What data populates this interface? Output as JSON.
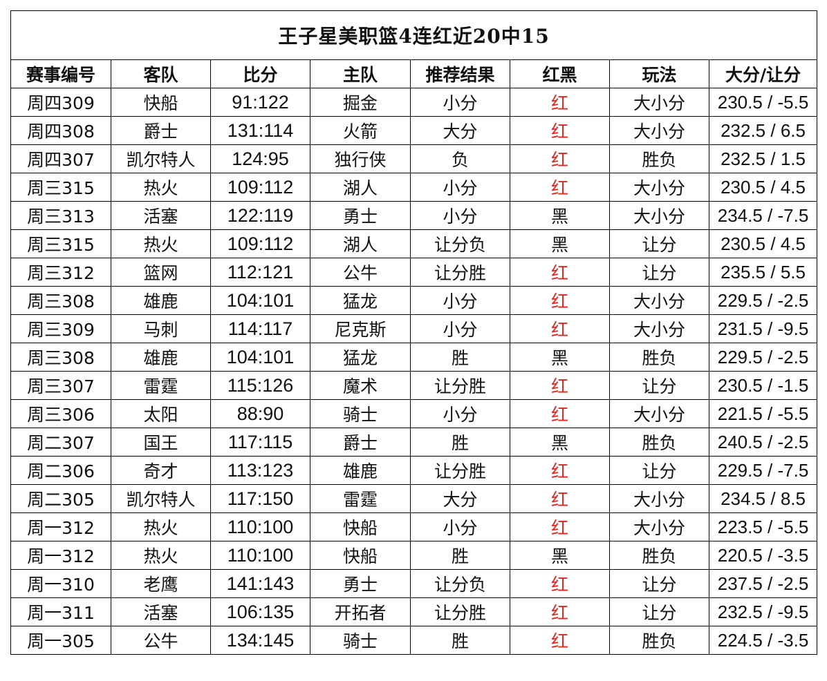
{
  "title": "王子星美职篮4连红近20中15",
  "headers": [
    "赛事编号",
    "客队",
    "比分",
    "主队",
    "推荐结果",
    "红黑",
    "玩法",
    "大分/让分"
  ],
  "rows": [
    [
      "周四309",
      "快船",
      "91:122",
      "掘金",
      "小分",
      "红",
      "大小分",
      "230.5 / -5.5"
    ],
    [
      "周四308",
      "爵士",
      "131:114",
      "火箭",
      "大分",
      "红",
      "大小分",
      "232.5 / 6.5"
    ],
    [
      "周四307",
      "凯尔特人",
      "124:95",
      "独行侠",
      "负",
      "红",
      "胜负",
      "232.5 / 1.5"
    ],
    [
      "周三315",
      "热火",
      "109:112",
      "湖人",
      "小分",
      "红",
      "大小分",
      "230.5 / 4.5"
    ],
    [
      "周三313",
      "活塞",
      "122:119",
      "勇士",
      "小分",
      "黑",
      "大小分",
      "234.5 / -7.5"
    ],
    [
      "周三315",
      "热火",
      "109:112",
      "湖人",
      "让分负",
      "黑",
      "让分",
      "230.5 / 4.5"
    ],
    [
      "周三312",
      "篮网",
      "112:121",
      "公牛",
      "让分胜",
      "红",
      "让分",
      "235.5 / 5.5"
    ],
    [
      "周三308",
      "雄鹿",
      "104:101",
      "猛龙",
      "小分",
      "红",
      "大小分",
      "229.5 / -2.5"
    ],
    [
      "周三309",
      "马刺",
      "114:117",
      "尼克斯",
      "小分",
      "红",
      "大小分",
      "231.5 / -9.5"
    ],
    [
      "周三308",
      "雄鹿",
      "104:101",
      "猛龙",
      "胜",
      "黑",
      "胜负",
      "229.5 / -2.5"
    ],
    [
      "周三307",
      "雷霆",
      "115:126",
      "魔术",
      "让分胜",
      "红",
      "让分",
      "230.5 / -1.5"
    ],
    [
      "周三306",
      "太阳",
      "88:90",
      "骑士",
      "小分",
      "红",
      "大小分",
      "221.5 / -5.5"
    ],
    [
      "周二307",
      "国王",
      "117:115",
      "爵士",
      "胜",
      "黑",
      "胜负",
      "240.5 / -2.5"
    ],
    [
      "周二306",
      "奇才",
      "113:123",
      "雄鹿",
      "让分胜",
      "红",
      "让分",
      "229.5 / -7.5"
    ],
    [
      "周二305",
      "凯尔特人",
      "117:150",
      "雷霆",
      "大分",
      "红",
      "大小分",
      "234.5 / 8.5"
    ],
    [
      "周一312",
      "热火",
      "110:100",
      "快船",
      "小分",
      "红",
      "大小分",
      "223.5 / -5.5"
    ],
    [
      "周一312",
      "热火",
      "110:100",
      "快船",
      "胜",
      "黑",
      "胜负",
      "220.5 / -3.5"
    ],
    [
      "周一310",
      "老鹰",
      "141:143",
      "勇士",
      "让分负",
      "红",
      "让分",
      "237.5 / -2.5"
    ],
    [
      "周一311",
      "活塞",
      "106:135",
      "开拓者",
      "让分胜",
      "红",
      "让分",
      "232.5 / -9.5"
    ],
    [
      "周一305",
      "公牛",
      "134:145",
      "骑士",
      "胜",
      "红",
      "胜负",
      "224.5 / -3.5"
    ]
  ],
  "colors": {
    "red_mark": "#e8241d",
    "text": "#111111",
    "border": "#000000"
  }
}
